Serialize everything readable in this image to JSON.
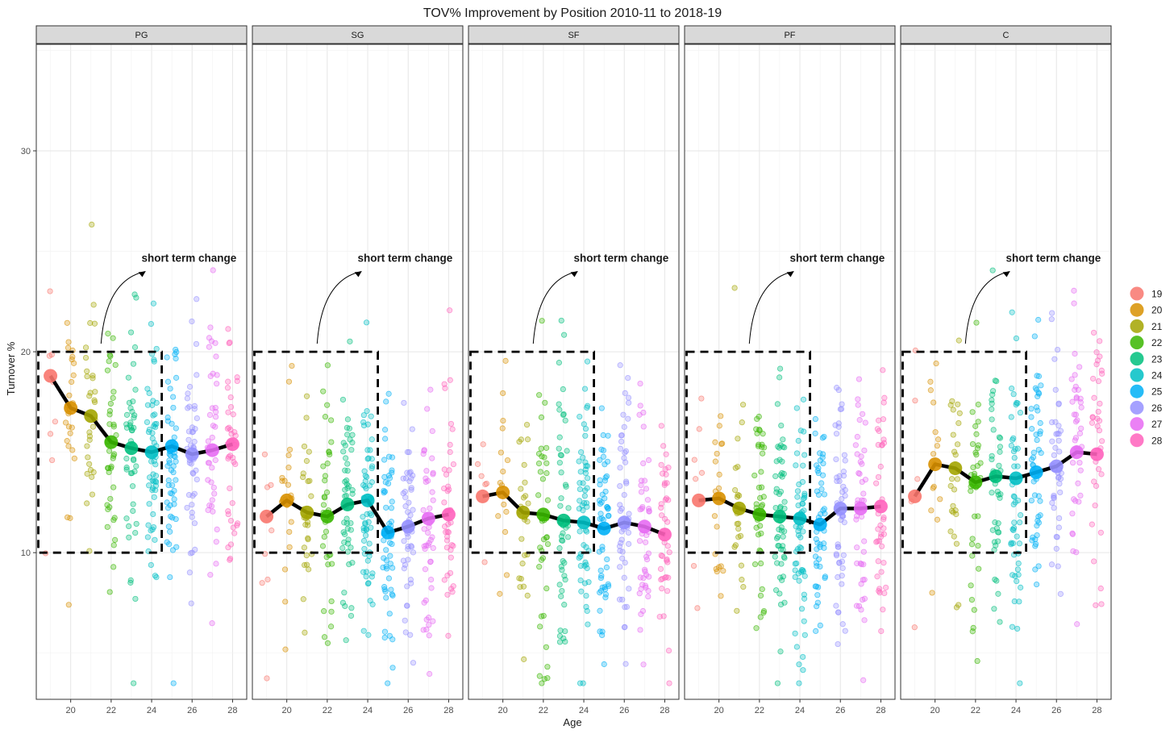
{
  "chart_data": {
    "type": "scatter",
    "title": "TOV% Improvement by Position 2010-11 to 2018-19",
    "xlabel": "Age",
    "ylabel": "Turnover %",
    "xlim": [
      18.3,
      28.7
    ],
    "ylim": [
      2.7,
      35.3
    ],
    "x_ticks": [
      20,
      22,
      24,
      26,
      28
    ],
    "y_ticks": [
      10,
      20,
      30
    ],
    "grid": true,
    "legend_position": "right",
    "annotation": "short term change",
    "annotation_box": {
      "x": [
        18.4,
        24.5
      ],
      "y": [
        10,
        20
      ]
    },
    "colors": {
      "19": "#F8766D",
      "20": "#D89000",
      "21": "#A3A500",
      "22": "#39B600",
      "23": "#00BF7D",
      "24": "#00BFC4",
      "25": "#00B0F6",
      "26": "#9590FF",
      "27": "#E76BF3",
      "28": "#FF62BC"
    },
    "legend": [
      "19",
      "20",
      "21",
      "22",
      "23",
      "24",
      "25",
      "26",
      "27",
      "28"
    ],
    "facets": [
      {
        "name": "PG",
        "ages": [
          19,
          20,
          21,
          22,
          23,
          24,
          25,
          26,
          27,
          28
        ],
        "means": [
          18.8,
          17.2,
          16.8,
          15.5,
          15.2,
          15.0,
          15.3,
          14.9,
          15.1,
          15.4
        ]
      },
      {
        "name": "SG",
        "ages": [
          19,
          20,
          21,
          22,
          23,
          24,
          25,
          26,
          27,
          28
        ],
        "means": [
          11.8,
          12.6,
          12.0,
          11.8,
          12.4,
          12.6,
          11.0,
          11.3,
          11.7,
          11.9
        ]
      },
      {
        "name": "SF",
        "ages": [
          19,
          20,
          21,
          22,
          23,
          24,
          25,
          26,
          27,
          28
        ],
        "means": [
          12.8,
          13.0,
          12.0,
          11.9,
          11.6,
          11.5,
          11.2,
          11.5,
          11.3,
          10.9
        ]
      },
      {
        "name": "PF",
        "ages": [
          19,
          20,
          21,
          22,
          23,
          24,
          25,
          26,
          27,
          28
        ],
        "means": [
          12.6,
          12.7,
          12.2,
          11.9,
          11.8,
          11.7,
          11.4,
          12.2,
          12.2,
          12.3
        ]
      },
      {
        "name": "C",
        "ages": [
          19,
          20,
          21,
          22,
          23,
          24,
          25,
          26,
          27,
          28
        ],
        "means": [
          12.8,
          14.4,
          14.2,
          13.5,
          13.8,
          13.7,
          14.0,
          14.3,
          15.0,
          14.9
        ]
      }
    ],
    "jitter_points_per_age": {
      "PG": [
        8,
        25,
        30,
        38,
        45,
        55,
        55,
        45,
        40,
        40
      ],
      "SG": [
        8,
        20,
        28,
        35,
        50,
        60,
        55,
        50,
        45,
        40
      ],
      "SF": [
        6,
        15,
        25,
        40,
        50,
        55,
        55,
        50,
        45,
        40
      ],
      "PF": [
        8,
        20,
        25,
        40,
        55,
        60,
        50,
        50,
        45,
        40
      ],
      "C": [
        5,
        15,
        25,
        35,
        45,
        50,
        50,
        45,
        40,
        35
      ]
    },
    "jitter_spread_sd": 3.2
  }
}
